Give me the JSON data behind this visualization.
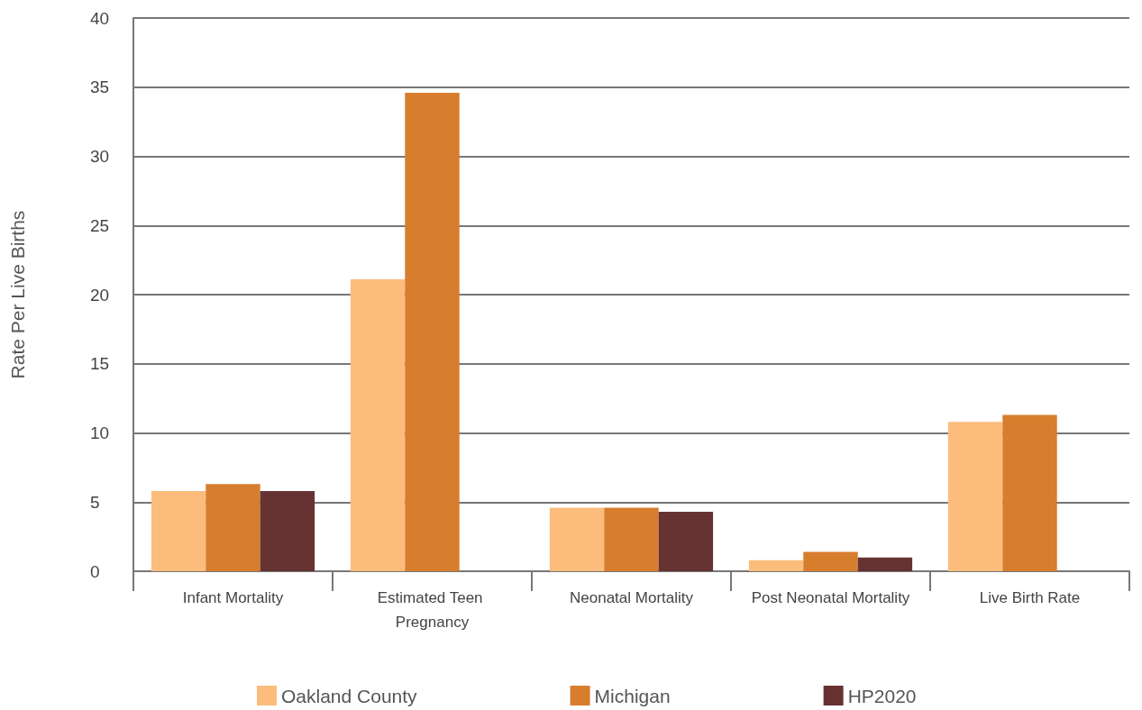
{
  "chart_data": {
    "type": "bar",
    "ylabel": "Rate Per Live Births",
    "categories": [
      "Infant Mortality",
      "Estimated Teen Pregnancy",
      "Neonatal Mortality",
      "Post Neonatal Mortality",
      "Live Birth Rate"
    ],
    "series": [
      {
        "name": "Oakland County",
        "color": "#fbbc7c",
        "values": [
          5.8,
          21.1,
          4.6,
          0.8,
          10.8
        ]
      },
      {
        "name": "Michigan",
        "color": "#d77d2e",
        "values": [
          6.3,
          34.6,
          4.6,
          1.4,
          11.3
        ]
      },
      {
        "name": "HP2020",
        "color": "#663332",
        "values": [
          5.8,
          null,
          4.3,
          1.0,
          null
        ]
      }
    ],
    "ylim": [
      0,
      40
    ],
    "yticks": [
      0,
      5,
      10,
      15,
      20,
      25,
      30,
      35,
      40
    ],
    "grid": "y",
    "legend": "bottom"
  }
}
